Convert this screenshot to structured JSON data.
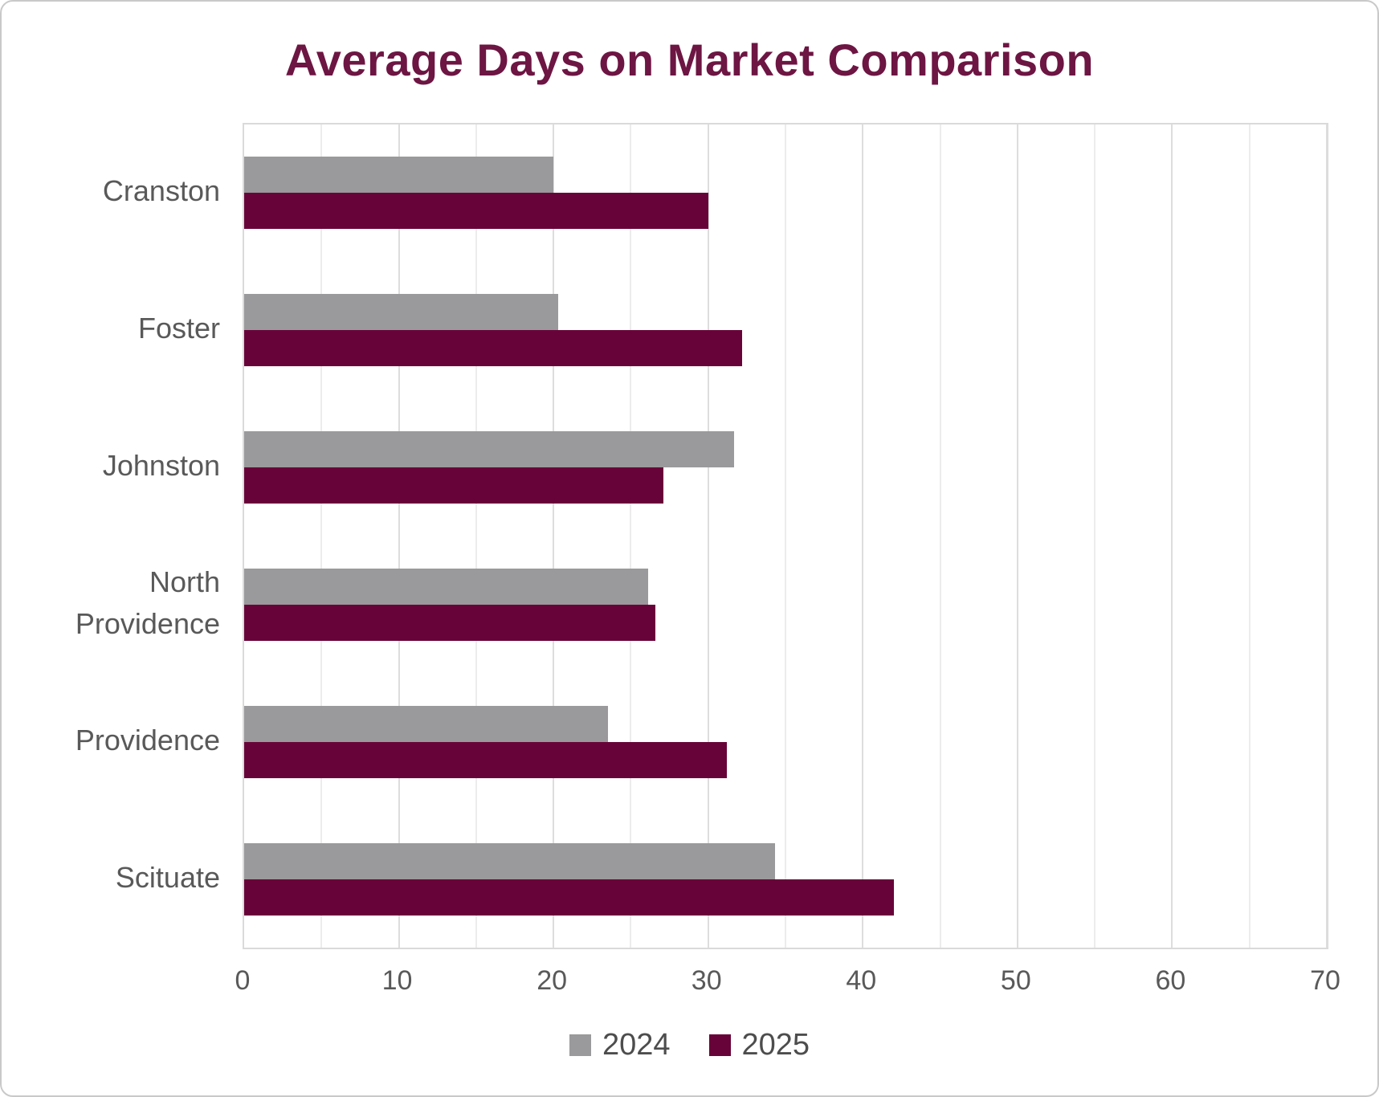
{
  "chart_data": {
    "type": "bar",
    "orientation": "horizontal",
    "title": "Average Days on Market Comparison",
    "categories": [
      "Cranston",
      "Foster",
      "Johnston",
      "North Providence",
      "Providence",
      "Scituate"
    ],
    "series": [
      {
        "name": "2024",
        "color": "#9A999B",
        "values": [
          20,
          20.3,
          31.7,
          26.1,
          23.5,
          34.3
        ]
      },
      {
        "name": "2025",
        "color": "#680339",
        "values": [
          30,
          32.2,
          27.1,
          26.6,
          31.2,
          42
        ]
      }
    ],
    "xlim": [
      0,
      70
    ],
    "x_ticks": [
      0,
      10,
      20,
      30,
      40,
      50,
      60,
      70
    ],
    "gridline_step": 5,
    "grid": true,
    "legend_position": "bottom",
    "xlabel": "",
    "ylabel": ""
  },
  "styles": {
    "title_color": "#6D1543",
    "axis_text_color": "#595959",
    "gridline_minor_color": "#ececec",
    "gridline_major_color": "#dddddd",
    "plot_border_color": "#dadada"
  }
}
